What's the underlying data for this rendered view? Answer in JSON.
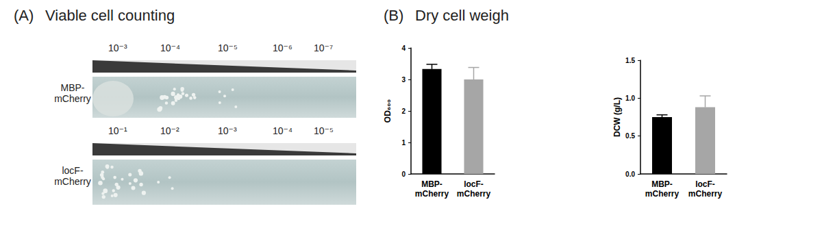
{
  "panel_a": {
    "label": "(A)",
    "title": "Viable cell counting",
    "rows": [
      {
        "name": "MBP-\nmCherry",
        "dilutions": [
          "10⁻³",
          "10⁻⁴",
          "10⁻⁵",
          "10⁻⁶",
          "10⁻⁷"
        ]
      },
      {
        "name": "locF-\nmCherry",
        "dilutions": [
          "10⁻¹",
          "10⁻²",
          "10⁻³",
          "10⁻⁴",
          "10⁻⁵"
        ]
      }
    ]
  },
  "panel_b": {
    "label": "(B)",
    "title": "Dry cell weigh"
  },
  "chart_data": [
    {
      "type": "bar",
      "ylabel": "OD₆₀₀",
      "categories": [
        "MBP-\nmCherry",
        "locF-\nmCherry"
      ],
      "values": [
        3.33,
        3.0
      ],
      "errors": [
        0.15,
        0.38
      ],
      "colors": [
        "#000000",
        "#a6a6a6"
      ],
      "ylim": [
        0,
        4
      ],
      "yticks": [
        0,
        1,
        2,
        3,
        4
      ],
      "grid": false
    },
    {
      "type": "bar",
      "ylabel": "DCW (g/L)",
      "categories": [
        "MBP-\nmCherry",
        "locF-\nmCherry"
      ],
      "values": [
        0.75,
        0.88
      ],
      "errors": [
        0.03,
        0.15
      ],
      "colors": [
        "#000000",
        "#a6a6a6"
      ],
      "ylim": [
        0,
        1.5
      ],
      "yticks": [
        {
          "value": 0,
          "label": "0.0"
        },
        0.5,
        {
          "value": 1,
          "label": "1.0"
        },
        1.5
      ],
      "grid": false
    }
  ]
}
